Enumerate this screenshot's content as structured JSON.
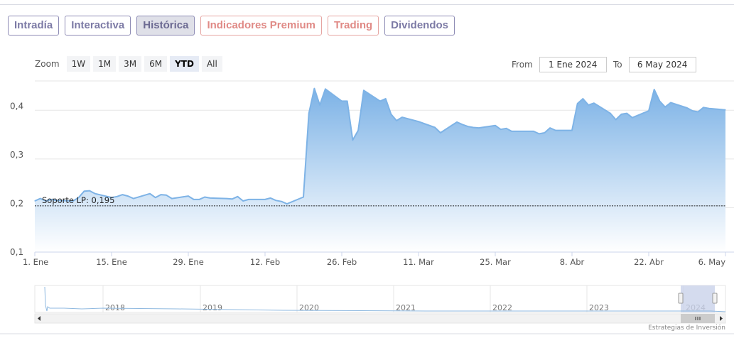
{
  "tabs": [
    {
      "label": "Intradía",
      "style": "purple"
    },
    {
      "label": "Interactiva",
      "style": "purple"
    },
    {
      "label": "Histórica",
      "style": "purple",
      "active": true
    },
    {
      "label": "Indicadores Premium",
      "style": "red"
    },
    {
      "label": "Trading",
      "style": "red"
    },
    {
      "label": "Dividendos",
      "style": "purple"
    }
  ],
  "zoom": {
    "label": "Zoom",
    "buttons": [
      "1W",
      "1M",
      "3M",
      "6M",
      "YTD",
      "All"
    ],
    "selected": "YTD"
  },
  "range": {
    "from_label": "From",
    "from_value": "1 Ene 2024",
    "to_label": "To",
    "to_value": "6 May 2024"
  },
  "credit": "Estrategias de Inversión",
  "colors": {
    "line": "#7eb3e6",
    "fill_top": "#7cb2e6",
    "fill_bottom": "#ffffff",
    "support": "#222222",
    "grid": "#e6e6e6"
  },
  "chart_data": {
    "type": "area",
    "x_start": "2024-01-01",
    "x_end": "2024-05-06",
    "ylim": [
      0.1,
      0.45
    ],
    "yticks": [
      0.1,
      0.2,
      0.3,
      0.4
    ],
    "ytick_labels": [
      "0,1",
      "0,2",
      "0,3",
      "0,4"
    ],
    "xticks": [
      {
        "date": "2024-01-01",
        "label": "1. Ene"
      },
      {
        "date": "2024-01-15",
        "label": "15. Ene"
      },
      {
        "date": "2024-01-29",
        "label": "29. Ene"
      },
      {
        "date": "2024-02-12",
        "label": "12. Feb"
      },
      {
        "date": "2024-02-26",
        "label": "26. Feb"
      },
      {
        "date": "2024-03-11",
        "label": "11. Mar"
      },
      {
        "date": "2024-03-25",
        "label": "25. Mar"
      },
      {
        "date": "2024-04-08",
        "label": "8. Abr"
      },
      {
        "date": "2024-04-22",
        "label": "22. Abr"
      },
      {
        "date": "2024-05-06",
        "label": "6. May"
      }
    ],
    "support": {
      "label": "Soporte LP: 0,195",
      "value": 0.195
    },
    "series": [
      {
        "points": [
          [
            "2024-01-01",
            0.205
          ],
          [
            "2024-01-02",
            0.21
          ],
          [
            "2024-01-03",
            0.205
          ],
          [
            "2024-01-04",
            0.208
          ],
          [
            "2024-01-05",
            0.206
          ],
          [
            "2024-01-08",
            0.205
          ],
          [
            "2024-01-09",
            0.212
          ],
          [
            "2024-01-10",
            0.225
          ],
          [
            "2024-01-11",
            0.226
          ],
          [
            "2024-01-12",
            0.22
          ],
          [
            "2024-01-15",
            0.212
          ],
          [
            "2024-01-16",
            0.214
          ],
          [
            "2024-01-17",
            0.218
          ],
          [
            "2024-01-18",
            0.215
          ],
          [
            "2024-01-19",
            0.21
          ],
          [
            "2024-01-22",
            0.22
          ],
          [
            "2024-01-23",
            0.212
          ],
          [
            "2024-01-24",
            0.218
          ],
          [
            "2024-01-25",
            0.217
          ],
          [
            "2024-01-26",
            0.21
          ],
          [
            "2024-01-29",
            0.215
          ],
          [
            "2024-01-30",
            0.208
          ],
          [
            "2024-01-31",
            0.208
          ],
          [
            "2024-02-01",
            0.213
          ],
          [
            "2024-02-02",
            0.211
          ],
          [
            "2024-02-05",
            0.21
          ],
          [
            "2024-02-06",
            0.209
          ],
          [
            "2024-02-07",
            0.214
          ],
          [
            "2024-02-08",
            0.205
          ],
          [
            "2024-02-09",
            0.208
          ],
          [
            "2024-02-12",
            0.208
          ],
          [
            "2024-02-13",
            0.211
          ],
          [
            "2024-02-14",
            0.206
          ],
          [
            "2024-02-15",
            0.204
          ],
          [
            "2024-02-16",
            0.199
          ],
          [
            "2024-02-19",
            0.213
          ],
          [
            "2024-02-20",
            0.385
          ],
          [
            "2024-02-21",
            0.436
          ],
          [
            "2024-02-22",
            0.402
          ],
          [
            "2024-02-23",
            0.435
          ],
          [
            "2024-02-26",
            0.41
          ],
          [
            "2024-02-27",
            0.41
          ],
          [
            "2024-02-28",
            0.33
          ],
          [
            "2024-02-29",
            0.35
          ],
          [
            "2024-03-01",
            0.432
          ],
          [
            "2024-03-04",
            0.41
          ],
          [
            "2024-03-05",
            0.415
          ],
          [
            "2024-03-06",
            0.383
          ],
          [
            "2024-03-07",
            0.37
          ],
          [
            "2024-03-08",
            0.377
          ],
          [
            "2024-03-11",
            0.368
          ],
          [
            "2024-03-12",
            0.364
          ],
          [
            "2024-03-13",
            0.36
          ],
          [
            "2024-03-14",
            0.356
          ],
          [
            "2024-03-15",
            0.345
          ],
          [
            "2024-03-18",
            0.367
          ],
          [
            "2024-03-19",
            0.362
          ],
          [
            "2024-03-20",
            0.358
          ],
          [
            "2024-03-21",
            0.356
          ],
          [
            "2024-03-22",
            0.355
          ],
          [
            "2024-03-25",
            0.36
          ],
          [
            "2024-03-26",
            0.352
          ],
          [
            "2024-03-27",
            0.354
          ],
          [
            "2024-03-28",
            0.348
          ],
          [
            "2024-04-01",
            0.348
          ],
          [
            "2024-04-02",
            0.343
          ],
          [
            "2024-04-03",
            0.345
          ],
          [
            "2024-04-04",
            0.355
          ],
          [
            "2024-04-05",
            0.35
          ],
          [
            "2024-04-08",
            0.35
          ],
          [
            "2024-04-09",
            0.405
          ],
          [
            "2024-04-10",
            0.415
          ],
          [
            "2024-04-11",
            0.402
          ],
          [
            "2024-04-12",
            0.406
          ],
          [
            "2024-04-15",
            0.385
          ],
          [
            "2024-04-16",
            0.372
          ],
          [
            "2024-04-17",
            0.383
          ],
          [
            "2024-04-18",
            0.385
          ],
          [
            "2024-04-19",
            0.376
          ],
          [
            "2024-04-22",
            0.39
          ],
          [
            "2024-04-23",
            0.434
          ],
          [
            "2024-04-24",
            0.41
          ],
          [
            "2024-04-25",
            0.398
          ],
          [
            "2024-04-26",
            0.407
          ],
          [
            "2024-04-29",
            0.396
          ],
          [
            "2024-04-30",
            0.39
          ],
          [
            "2024-05-01",
            0.388
          ],
          [
            "2024-05-02",
            0.397
          ],
          [
            "2024-05-03",
            0.395
          ],
          [
            "2024-05-06",
            0.392
          ]
        ]
      }
    ],
    "navigator": {
      "years": [
        "2018",
        "2019",
        "2020",
        "2021",
        "2022",
        "2023",
        "2024"
      ]
    }
  }
}
